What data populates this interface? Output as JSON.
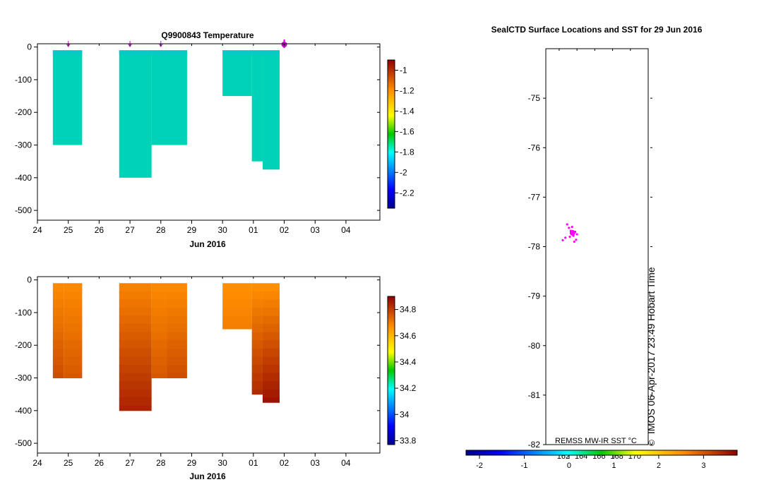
{
  "chart_data": [
    {
      "id": "temperature",
      "type": "heatmap",
      "title": "Q9900843  Temperature",
      "xlabel": "Jun 2016",
      "ylabel": "",
      "x_tick_labels": [
        "24",
        "25",
        "26",
        "27",
        "28",
        "29",
        "30",
        "01",
        "02",
        "03",
        "04"
      ],
      "xlim": [
        24,
        35.1
      ],
      "y_ticks": [
        0,
        -100,
        -200,
        -300,
        -400,
        -500
      ],
      "y_tick_labels": [
        "0",
        "-100",
        "-200",
        "-300",
        "-400",
        "-500"
      ],
      "ylim": [
        -530,
        10
      ],
      "profile_markers_day": [
        25,
        27,
        28
      ],
      "highlight_marker_day": 32,
      "colors": {
        "marker": "#cc00cc",
        "fill": "#00d2b8",
        "fill_alt": "#08c8c8"
      },
      "profiles": [
        {
          "x0": 24.5,
          "x1": 25.45,
          "depth": 300,
          "value": -1.99
        },
        {
          "x0": 26.65,
          "x1": 27.7,
          "depth": 400,
          "value": -1.99
        },
        {
          "x0": 27.7,
          "x1": 28.85,
          "depth": 300,
          "value": -1.99
        },
        {
          "x0": 30.0,
          "x1": 30.95,
          "depth": 150,
          "value": -1.99
        },
        {
          "x0": 30.95,
          "x1": 31.3,
          "depth": 350,
          "value": -1.99
        },
        {
          "x0": 31.3,
          "x1": 31.85,
          "depth": 375,
          "value": -1.99
        }
      ],
      "colorbar": {
        "tick_labels": [
          "-1",
          "-1.2",
          "-1.4",
          "-1.6",
          "-1.8",
          "-2",
          "-2.2"
        ],
        "tick_values": [
          -1,
          -1.2,
          -1.4,
          -1.6,
          -1.8,
          -2,
          -2.2
        ],
        "range": [
          -2.35,
          -0.9
        ]
      }
    },
    {
      "id": "salinity",
      "type": "heatmap",
      "title": "",
      "xlabel": "Jun 2016",
      "ylabel": "",
      "x_tick_labels": [
        "24",
        "25",
        "26",
        "27",
        "28",
        "29",
        "30",
        "01",
        "02",
        "03",
        "04"
      ],
      "xlim": [
        24,
        35.1
      ],
      "y_ticks": [
        0,
        -100,
        -200,
        -300,
        -400,
        -500
      ],
      "y_tick_labels": [
        "0",
        "-100",
        "-200",
        "-300",
        "-400",
        "-500"
      ],
      "ylim": [
        -530,
        10
      ],
      "profiles": [
        {
          "x0": 24.5,
          "x1": 24.85,
          "depth": 300,
          "surface": 34.68,
          "bottom": 34.78
        },
        {
          "x0": 24.85,
          "x1": 25.45,
          "depth": 300,
          "surface": 34.68,
          "bottom": 34.76
        },
        {
          "x0": 26.65,
          "x1": 27.7,
          "depth": 400,
          "surface": 34.69,
          "bottom": 34.85
        },
        {
          "x0": 27.7,
          "x1": 28.2,
          "depth": 300,
          "surface": 34.68,
          "bottom": 34.76
        },
        {
          "x0": 28.2,
          "x1": 28.85,
          "depth": 300,
          "surface": 34.68,
          "bottom": 34.78
        },
        {
          "x0": 30.0,
          "x1": 30.95,
          "depth": 150,
          "surface": 34.67,
          "bottom": 34.7
        },
        {
          "x0": 30.95,
          "x1": 31.3,
          "depth": 350,
          "surface": 34.67,
          "bottom": 34.84
        },
        {
          "x0": 31.3,
          "x1": 31.85,
          "depth": 375,
          "surface": 34.67,
          "bottom": 34.88
        }
      ],
      "colorbar": {
        "tick_labels": [
          "34.8",
          "34.6",
          "34.4",
          "34.2",
          "34",
          "33.8"
        ],
        "tick_values": [
          34.8,
          34.6,
          34.4,
          34.2,
          34.0,
          33.8
        ],
        "range": [
          33.77,
          34.9
        ]
      }
    },
    {
      "id": "map",
      "type": "scatter",
      "title": "SealCTD Surface Locations and SST for 29 Jun 2016",
      "y_ticks": [
        -75,
        -76,
        -77,
        -78,
        -79,
        -80,
        -81,
        -82
      ],
      "y_tick_labels": [
        "-75",
        "-76",
        "-77",
        "-78",
        "-79",
        "-80",
        "-81",
        "-82"
      ],
      "ylim": [
        -82,
        -74
      ],
      "lon_tick_labels": [
        "162",
        "164",
        "166",
        "168",
        "170"
      ],
      "lon_ticks": [
        162,
        164,
        166,
        168,
        170
      ],
      "lonlim": [
        160.5,
        172
      ],
      "points_color": "#ff00ff",
      "main_point": {
        "lon": 163.5,
        "lat": -77.72
      },
      "points": [
        {
          "lon": 162.9,
          "lat": -77.55
        },
        {
          "lon": 163.1,
          "lat": -77.62
        },
        {
          "lon": 163.3,
          "lat": -77.68
        },
        {
          "lon": 163.8,
          "lat": -77.7
        },
        {
          "lon": 163.6,
          "lat": -77.78
        },
        {
          "lon": 163.9,
          "lat": -77.86
        },
        {
          "lon": 163.7,
          "lat": -77.9
        },
        {
          "lon": 162.4,
          "lat": -77.87
        },
        {
          "lon": 163.2,
          "lat": -77.8
        },
        {
          "lon": 164.0,
          "lat": -77.75
        },
        {
          "lon": 163.45,
          "lat": -77.6
        },
        {
          "lon": 162.7,
          "lat": -77.82
        }
      ],
      "credit": "IMOS 06-Apr-2017 23:49 Hobart Time",
      "credit_symbol": "©",
      "sst_label": "REMSS MW-IR SST °C",
      "sst_colorbar": {
        "tick_labels": [
          "-2",
          "-1",
          "0",
          "1",
          "2",
          "3"
        ],
        "tick_values": [
          -2,
          -1,
          0,
          1,
          2,
          3
        ],
        "range": [
          -2.3,
          3.75
        ]
      }
    }
  ]
}
